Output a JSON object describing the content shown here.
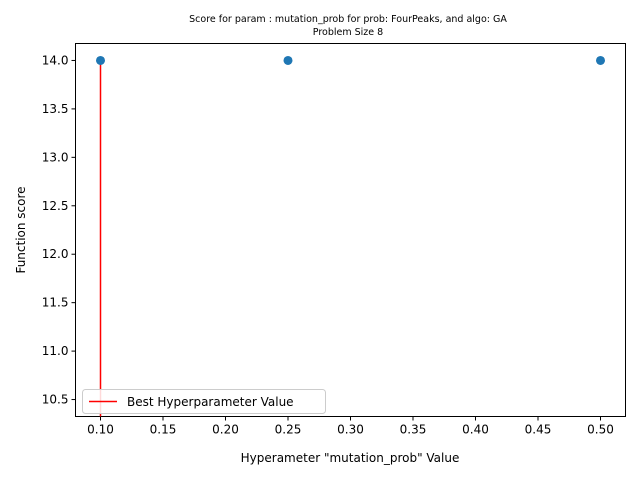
{
  "chart_data": {
    "type": "scatter",
    "title": "Score for param : mutation_prob for prob: FourPeaks, and algo: GA",
    "subtitle": "Problem Size 8",
    "xlabel": "Hyperameter \"mutation_prob\" Value",
    "ylabel": "Function score",
    "xlim": [
      0.08,
      0.52
    ],
    "ylim": [
      10.325,
      14.175
    ],
    "x_ticks": [
      "0.10",
      "0.15",
      "0.20",
      "0.25",
      "0.30",
      "0.35",
      "0.40",
      "0.45",
      "0.50"
    ],
    "x_tick_values": [
      0.1,
      0.15,
      0.2,
      0.25,
      0.3,
      0.35,
      0.4,
      0.45,
      0.5
    ],
    "y_ticks": [
      "10.5",
      "11.0",
      "11.5",
      "12.0",
      "12.5",
      "13.0",
      "13.5",
      "14.0"
    ],
    "y_tick_values": [
      10.5,
      11.0,
      11.5,
      12.0,
      12.5,
      13.0,
      13.5,
      14.0
    ],
    "points": [
      {
        "x": 0.1,
        "y": 14.0
      },
      {
        "x": 0.25,
        "y": 14.0
      },
      {
        "x": 0.5,
        "y": 14.0
      }
    ],
    "best_line": {
      "x": 0.1,
      "y_from": 10.325,
      "y_to": 14.0
    },
    "legend": {
      "label": "Best Hyperparameter Value",
      "placement": "lower-left"
    },
    "grid": false,
    "colors": {
      "points": "#1f77b4",
      "best_line": "#ff0000",
      "axes": "#000000"
    }
  }
}
